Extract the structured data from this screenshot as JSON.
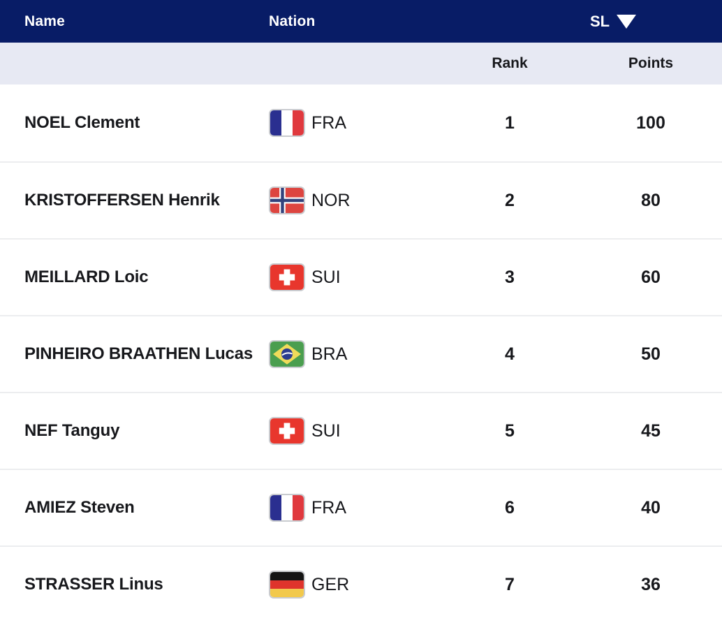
{
  "header": {
    "name_label": "Name",
    "nation_label": "Nation",
    "discipline": {
      "label": "SL",
      "icon": "caret-down-icon"
    }
  },
  "subheader": {
    "rank_label": "Rank",
    "points_label": "Points"
  },
  "standings": [
    {
      "name": "NOEL Clement",
      "nation_code": "FRA",
      "flag_icon": "fra",
      "rank": "1",
      "points": "100"
    },
    {
      "name": "KRISTOFFERSEN Henrik",
      "nation_code": "NOR",
      "flag_icon": "nor",
      "rank": "2",
      "points": "80"
    },
    {
      "name": "MEILLARD Loic",
      "nation_code": "SUI",
      "flag_icon": "sui",
      "rank": "3",
      "points": "60"
    },
    {
      "name": "PINHEIRO BRAATHEN Lucas",
      "nation_code": "BRA",
      "flag_icon": "bra",
      "rank": "4",
      "points": "50"
    },
    {
      "name": "NEF Tanguy",
      "nation_code": "SUI",
      "flag_icon": "sui",
      "rank": "5",
      "points": "45"
    },
    {
      "name": "AMIEZ Steven",
      "nation_code": "FRA",
      "flag_icon": "fra",
      "rank": "6",
      "points": "40"
    },
    {
      "name": "STRASSER Linus",
      "nation_code": "GER",
      "flag_icon": "ger",
      "rank": "7",
      "points": "36"
    }
  ],
  "colors": {
    "header_bg": "#081C66",
    "subheader_bg": "#E7E9F3",
    "row_bg": "#FFFFFF",
    "text_dark": "#17181C",
    "text_light": "#FFFFFF",
    "separator": "#ECEDEF"
  }
}
